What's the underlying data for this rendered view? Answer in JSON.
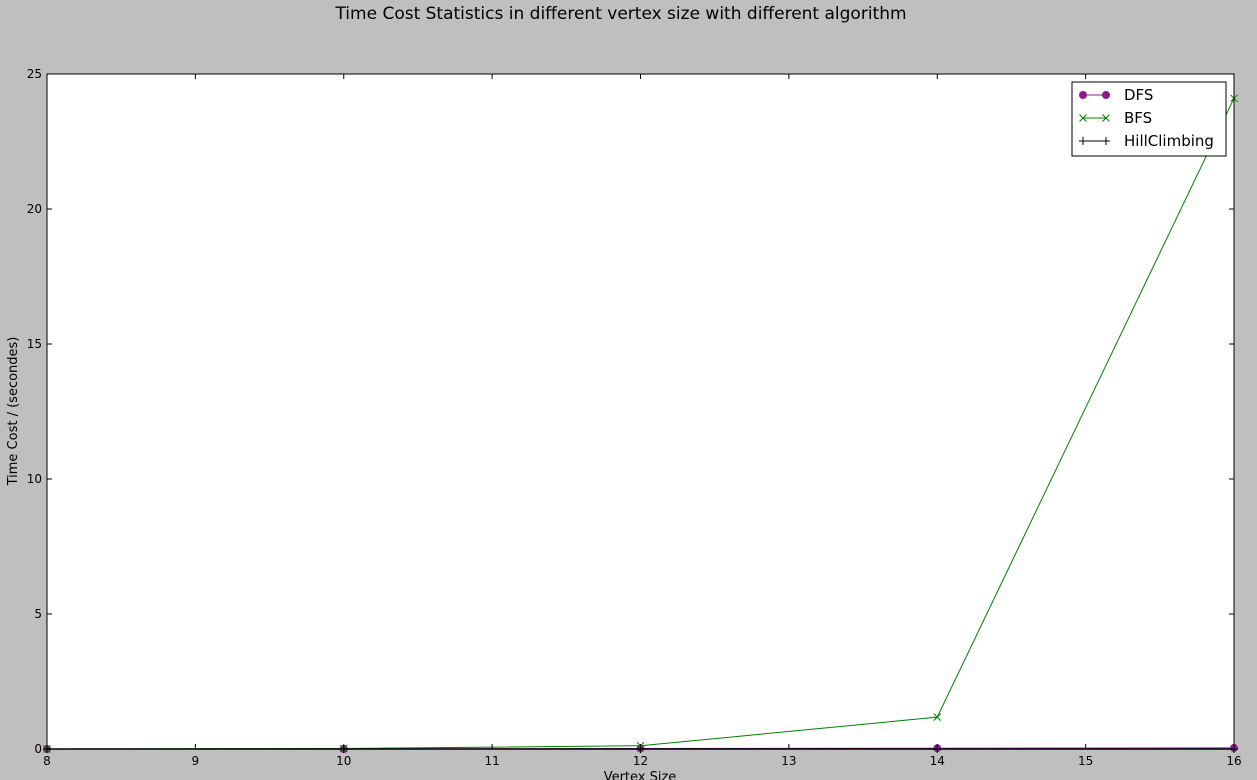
{
  "chart_data": {
    "type": "line",
    "title": "Time Cost Statistics in different vertex size with different algorithm",
    "xlabel": "Vertex Size",
    "ylabel": "Time Cost / (secondes)",
    "xlim": [
      8,
      16
    ],
    "ylim": [
      0,
      25
    ],
    "xticks": [
      8,
      9,
      10,
      11,
      12,
      13,
      14,
      15,
      16
    ],
    "yticks": [
      0,
      5,
      10,
      15,
      20,
      25
    ],
    "x": [
      8,
      10,
      12,
      14,
      16
    ],
    "grid": false,
    "legend_position": "top-right",
    "series": [
      {
        "name": "DFS",
        "values": [
          0.0,
          0.0,
          0.02,
          0.03,
          0.04
        ],
        "color": "#8b1a8b",
        "marker": "circle"
      },
      {
        "name": "BFS",
        "values": [
          0.0,
          0.02,
          0.12,
          1.18,
          24.1
        ],
        "color": "#008000",
        "marker": "x"
      },
      {
        "name": "HillClimbing",
        "values": [
          0.0,
          0.0,
          0.0,
          0.0,
          0.0
        ],
        "color": "#000000",
        "marker": "plus"
      }
    ]
  }
}
